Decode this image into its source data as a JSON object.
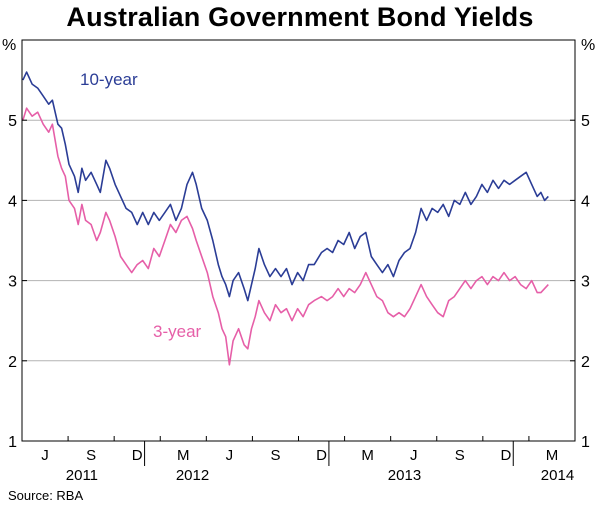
{
  "title": "Australian Government Bond Yields",
  "source": "Source: RBA",
  "colors": {
    "ten_year": "#2b3d96",
    "three_year": "#e65fa8",
    "grid": "#b3b3b3",
    "axis": "#000000"
  },
  "chart_data": {
    "type": "line",
    "title": "Australian Government Bond Yields",
    "ylabel_left": "%",
    "ylabel_right": "%",
    "ylim": [
      1,
      6
    ],
    "yticks": [
      1,
      2,
      3,
      4,
      5
    ],
    "xlim": [
      2011.375,
      2014.375
    ],
    "grid": "horizontal",
    "month_labels": [
      {
        "label": "J",
        "x": 2011.5
      },
      {
        "label": "S",
        "x": 2011.75
      },
      {
        "label": "D",
        "x": 2012.0
      },
      {
        "label": "M",
        "x": 2012.25
      },
      {
        "label": "J",
        "x": 2012.5
      },
      {
        "label": "S",
        "x": 2012.75
      },
      {
        "label": "D",
        "x": 2013.0
      },
      {
        "label": "M",
        "x": 2013.25
      },
      {
        "label": "J",
        "x": 2013.5
      },
      {
        "label": "S",
        "x": 2013.75
      },
      {
        "label": "D",
        "x": 2014.0
      },
      {
        "label": "M",
        "x": 2014.25
      }
    ],
    "year_labels": [
      {
        "label": "2011",
        "x": 2011.7
      },
      {
        "label": "2012",
        "x": 2012.3
      },
      {
        "label": "2013",
        "x": 2013.45
      },
      {
        "label": "2014",
        "x": 2014.28
      }
    ],
    "year_dividers": [
      2012.04,
      2013.04,
      2014.04
    ],
    "series": [
      {
        "name": "10-year",
        "color": "#2b3d96",
        "points": [
          [
            2011.38,
            5.5
          ],
          [
            2011.4,
            5.6
          ],
          [
            2011.43,
            5.45
          ],
          [
            2011.46,
            5.4
          ],
          [
            2011.49,
            5.3
          ],
          [
            2011.52,
            5.2
          ],
          [
            2011.54,
            5.25
          ],
          [
            2011.57,
            4.95
          ],
          [
            2011.59,
            4.9
          ],
          [
            2011.61,
            4.7
          ],
          [
            2011.63,
            4.45
          ],
          [
            2011.66,
            4.3
          ],
          [
            2011.68,
            4.1
          ],
          [
            2011.7,
            4.4
          ],
          [
            2011.72,
            4.25
          ],
          [
            2011.75,
            4.35
          ],
          [
            2011.78,
            4.2
          ],
          [
            2011.8,
            4.1
          ],
          [
            2011.83,
            4.5
          ],
          [
            2011.85,
            4.4
          ],
          [
            2011.88,
            4.2
          ],
          [
            2011.91,
            4.05
          ],
          [
            2011.94,
            3.9
          ],
          [
            2011.97,
            3.85
          ],
          [
            2012.0,
            3.7
          ],
          [
            2012.03,
            3.85
          ],
          [
            2012.06,
            3.7
          ],
          [
            2012.09,
            3.85
          ],
          [
            2012.12,
            3.75
          ],
          [
            2012.15,
            3.85
          ],
          [
            2012.18,
            3.95
          ],
          [
            2012.21,
            3.75
          ],
          [
            2012.24,
            3.9
          ],
          [
            2012.27,
            4.2
          ],
          [
            2012.3,
            4.35
          ],
          [
            2012.32,
            4.2
          ],
          [
            2012.35,
            3.9
          ],
          [
            2012.38,
            3.75
          ],
          [
            2012.41,
            3.5
          ],
          [
            2012.44,
            3.2
          ],
          [
            2012.46,
            3.05
          ],
          [
            2012.48,
            2.95
          ],
          [
            2012.5,
            2.8
          ],
          [
            2012.52,
            3.0
          ],
          [
            2012.55,
            3.1
          ],
          [
            2012.58,
            2.9
          ],
          [
            2012.6,
            2.75
          ],
          [
            2012.62,
            2.95
          ],
          [
            2012.64,
            3.15
          ],
          [
            2012.66,
            3.4
          ],
          [
            2012.69,
            3.2
          ],
          [
            2012.72,
            3.05
          ],
          [
            2012.75,
            3.15
          ],
          [
            2012.78,
            3.05
          ],
          [
            2012.81,
            3.15
          ],
          [
            2012.84,
            2.95
          ],
          [
            2012.87,
            3.1
          ],
          [
            2012.9,
            3.0
          ],
          [
            2012.93,
            3.2
          ],
          [
            2012.96,
            3.2
          ],
          [
            2013.0,
            3.35
          ],
          [
            2013.03,
            3.4
          ],
          [
            2013.06,
            3.35
          ],
          [
            2013.09,
            3.5
          ],
          [
            2013.12,
            3.45
          ],
          [
            2013.15,
            3.6
          ],
          [
            2013.18,
            3.4
          ],
          [
            2013.21,
            3.55
          ],
          [
            2013.24,
            3.6
          ],
          [
            2013.27,
            3.3
          ],
          [
            2013.3,
            3.2
          ],
          [
            2013.33,
            3.1
          ],
          [
            2013.36,
            3.2
          ],
          [
            2013.39,
            3.05
          ],
          [
            2013.42,
            3.25
          ],
          [
            2013.45,
            3.35
          ],
          [
            2013.48,
            3.4
          ],
          [
            2013.51,
            3.6
          ],
          [
            2013.54,
            3.9
          ],
          [
            2013.57,
            3.75
          ],
          [
            2013.6,
            3.9
          ],
          [
            2013.63,
            3.85
          ],
          [
            2013.66,
            3.95
          ],
          [
            2013.69,
            3.8
          ],
          [
            2013.72,
            4.0
          ],
          [
            2013.75,
            3.95
          ],
          [
            2013.78,
            4.1
          ],
          [
            2013.81,
            3.95
          ],
          [
            2013.84,
            4.05
          ],
          [
            2013.87,
            4.2
          ],
          [
            2013.9,
            4.1
          ],
          [
            2013.93,
            4.25
          ],
          [
            2013.96,
            4.15
          ],
          [
            2013.99,
            4.25
          ],
          [
            2014.02,
            4.2
          ],
          [
            2014.05,
            4.25
          ],
          [
            2014.08,
            4.3
          ],
          [
            2014.11,
            4.35
          ],
          [
            2014.14,
            4.2
          ],
          [
            2014.17,
            4.05
          ],
          [
            2014.19,
            4.1
          ],
          [
            2014.21,
            4.0
          ],
          [
            2014.23,
            4.05
          ]
        ]
      },
      {
        "name": "3-year",
        "color": "#e65fa8",
        "points": [
          [
            2011.38,
            5.0
          ],
          [
            2011.4,
            5.15
          ],
          [
            2011.43,
            5.05
          ],
          [
            2011.46,
            5.1
          ],
          [
            2011.49,
            4.95
          ],
          [
            2011.52,
            4.85
          ],
          [
            2011.54,
            4.95
          ],
          [
            2011.57,
            4.55
          ],
          [
            2011.59,
            4.4
          ],
          [
            2011.61,
            4.3
          ],
          [
            2011.63,
            4.0
          ],
          [
            2011.66,
            3.9
          ],
          [
            2011.68,
            3.7
          ],
          [
            2011.7,
            3.95
          ],
          [
            2011.72,
            3.75
          ],
          [
            2011.75,
            3.7
          ],
          [
            2011.78,
            3.5
          ],
          [
            2011.8,
            3.6
          ],
          [
            2011.83,
            3.85
          ],
          [
            2011.85,
            3.75
          ],
          [
            2011.88,
            3.55
          ],
          [
            2011.91,
            3.3
          ],
          [
            2011.94,
            3.2
          ],
          [
            2011.97,
            3.1
          ],
          [
            2012.0,
            3.2
          ],
          [
            2012.03,
            3.25
          ],
          [
            2012.06,
            3.15
          ],
          [
            2012.09,
            3.4
          ],
          [
            2012.12,
            3.3
          ],
          [
            2012.15,
            3.5
          ],
          [
            2012.18,
            3.7
          ],
          [
            2012.21,
            3.6
          ],
          [
            2012.24,
            3.75
          ],
          [
            2012.27,
            3.8
          ],
          [
            2012.3,
            3.65
          ],
          [
            2012.32,
            3.5
          ],
          [
            2012.35,
            3.3
          ],
          [
            2012.38,
            3.1
          ],
          [
            2012.41,
            2.8
          ],
          [
            2012.44,
            2.6
          ],
          [
            2012.46,
            2.4
          ],
          [
            2012.48,
            2.3
          ],
          [
            2012.5,
            1.95
          ],
          [
            2012.52,
            2.25
          ],
          [
            2012.55,
            2.4
          ],
          [
            2012.58,
            2.2
          ],
          [
            2012.6,
            2.15
          ],
          [
            2012.62,
            2.4
          ],
          [
            2012.64,
            2.55
          ],
          [
            2012.66,
            2.75
          ],
          [
            2012.69,
            2.6
          ],
          [
            2012.72,
            2.5
          ],
          [
            2012.75,
            2.7
          ],
          [
            2012.78,
            2.6
          ],
          [
            2012.81,
            2.65
          ],
          [
            2012.84,
            2.5
          ],
          [
            2012.87,
            2.65
          ],
          [
            2012.9,
            2.55
          ],
          [
            2012.93,
            2.7
          ],
          [
            2012.96,
            2.75
          ],
          [
            2013.0,
            2.8
          ],
          [
            2013.03,
            2.75
          ],
          [
            2013.06,
            2.8
          ],
          [
            2013.09,
            2.9
          ],
          [
            2013.12,
            2.8
          ],
          [
            2013.15,
            2.9
          ],
          [
            2013.18,
            2.85
          ],
          [
            2013.21,
            2.95
          ],
          [
            2013.24,
            3.1
          ],
          [
            2013.27,
            2.95
          ],
          [
            2013.3,
            2.8
          ],
          [
            2013.33,
            2.75
          ],
          [
            2013.36,
            2.6
          ],
          [
            2013.39,
            2.55
          ],
          [
            2013.42,
            2.6
          ],
          [
            2013.45,
            2.55
          ],
          [
            2013.48,
            2.65
          ],
          [
            2013.51,
            2.8
          ],
          [
            2013.54,
            2.95
          ],
          [
            2013.57,
            2.8
          ],
          [
            2013.6,
            2.7
          ],
          [
            2013.63,
            2.6
          ],
          [
            2013.66,
            2.55
          ],
          [
            2013.69,
            2.75
          ],
          [
            2013.72,
            2.8
          ],
          [
            2013.75,
            2.9
          ],
          [
            2013.78,
            3.0
          ],
          [
            2013.81,
            2.9
          ],
          [
            2013.84,
            3.0
          ],
          [
            2013.87,
            3.05
          ],
          [
            2013.9,
            2.95
          ],
          [
            2013.93,
            3.05
          ],
          [
            2013.96,
            3.0
          ],
          [
            2013.99,
            3.1
          ],
          [
            2014.02,
            3.0
          ],
          [
            2014.05,
            3.05
          ],
          [
            2014.08,
            2.95
          ],
          [
            2014.11,
            2.9
          ],
          [
            2014.14,
            3.0
          ],
          [
            2014.17,
            2.85
          ],
          [
            2014.19,
            2.85
          ],
          [
            2014.21,
            2.9
          ],
          [
            2014.23,
            2.95
          ]
        ]
      }
    ]
  }
}
